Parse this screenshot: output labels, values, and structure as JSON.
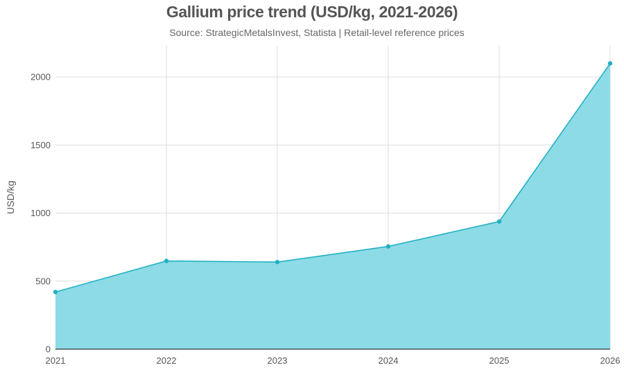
{
  "chart_data": {
    "type": "area",
    "title": "Gallium price trend (USD/kg, 2021-2026)",
    "subtitle": "Source: StrategicMetalsInvest, Statista | Retail-level reference prices",
    "xlabel": "",
    "ylabel": "USD/kg",
    "x": [
      "2021",
      "2022",
      "2023",
      "2024",
      "2025",
      "2026"
    ],
    "series": [
      {
        "values": [
          420,
          648,
          640,
          755,
          938,
          2100
        ]
      }
    ],
    "yticks": [
      0,
      500,
      1000,
      1500,
      2000
    ],
    "ylim": [
      0,
      2230
    ],
    "grid": true,
    "legend": "none",
    "colors": {
      "fill": "#8ddbe6",
      "line": "#22b0c4",
      "grid": "#dddddd",
      "axis": "#333333"
    }
  }
}
